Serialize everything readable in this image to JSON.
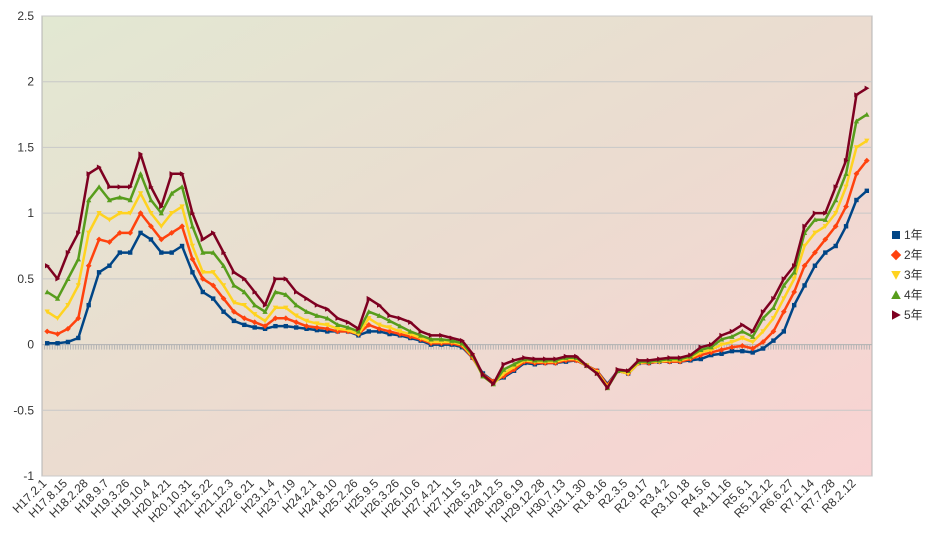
{
  "chart_data": {
    "type": "line",
    "categories": [
      "H17.2.1",
      null,
      "H17.8.15",
      null,
      "H18.2.28",
      null,
      "H18.9.7",
      null,
      "H19.3.26",
      null,
      "H19.10.4",
      null,
      "H20.4.21",
      null,
      "H20.10.31",
      null,
      "H21.5.22",
      null,
      "H21.12.3",
      null,
      "H22.6.21",
      null,
      "H23.1.4",
      null,
      "H23.7.19",
      null,
      "H24.2.1",
      null,
      "H24.8.10",
      null,
      "H25.2.26",
      null,
      "H25.9.5",
      null,
      "H26.3.26",
      null,
      "H26.10.6",
      null,
      "H27.4.21",
      null,
      "H27.11.5",
      null,
      "H28.5.24",
      null,
      "H28.12.5",
      null,
      "H29.6.19",
      null,
      "H29.12.28",
      null,
      "H30.7.13",
      null,
      "H31.1.30",
      null,
      "R1.8.16",
      null,
      "R2.3.5",
      null,
      "R2.9.17",
      null,
      "R3.4.2",
      null,
      "R3.10.18",
      null,
      "R4.5.6",
      null,
      "R4.11.16",
      null,
      "R5.6.1",
      null,
      "R5.12.12",
      null,
      "R6.6.27",
      null,
      "R7.1.14",
      null,
      "R7.7.28",
      null,
      "R8.2.12",
      null
    ],
    "series": [
      {
        "name": "1年",
        "color": "#004586",
        "values": [
          0.01,
          0.01,
          0.02,
          0.05,
          0.3,
          0.55,
          0.6,
          0.7,
          0.7,
          0.85,
          0.8,
          0.7,
          0.7,
          0.75,
          0.55,
          0.4,
          0.35,
          0.25,
          0.18,
          0.15,
          0.13,
          0.12,
          0.14,
          0.14,
          0.13,
          0.12,
          0.11,
          0.1,
          0.1,
          0.1,
          0.07,
          0.1,
          0.1,
          0.08,
          0.07,
          0.05,
          0.03,
          0.0,
          0.0,
          0.0,
          -0.02,
          -0.1,
          -0.22,
          -0.28,
          -0.25,
          -0.2,
          -0.14,
          -0.15,
          -0.14,
          -0.14,
          -0.13,
          -0.12,
          -0.16,
          -0.2,
          -0.3,
          -0.2,
          -0.22,
          -0.14,
          -0.14,
          -0.13,
          -0.13,
          -0.13,
          -0.12,
          -0.11,
          -0.08,
          -0.07,
          -0.05,
          -0.05,
          -0.06,
          -0.03,
          0.03,
          0.1,
          0.3,
          0.45,
          0.6,
          0.7,
          0.75,
          0.9,
          1.1,
          1.17
        ]
      },
      {
        "name": "2年",
        "color": "#ff420e",
        "values": [
          0.1,
          0.08,
          0.12,
          0.2,
          0.6,
          0.8,
          0.78,
          0.85,
          0.85,
          1.0,
          0.9,
          0.8,
          0.85,
          0.9,
          0.65,
          0.5,
          0.45,
          0.35,
          0.25,
          0.2,
          0.17,
          0.14,
          0.2,
          0.2,
          0.17,
          0.14,
          0.13,
          0.12,
          0.1,
          0.1,
          0.08,
          0.15,
          0.12,
          0.1,
          0.08,
          0.06,
          0.04,
          0.01,
          0.01,
          0.01,
          -0.01,
          -0.1,
          -0.23,
          -0.28,
          -0.24,
          -0.19,
          -0.13,
          -0.14,
          -0.14,
          -0.14,
          -0.12,
          -0.12,
          -0.16,
          -0.2,
          -0.31,
          -0.2,
          -0.22,
          -0.14,
          -0.14,
          -0.13,
          -0.13,
          -0.13,
          -0.11,
          -0.08,
          -0.06,
          -0.04,
          -0.02,
          -0.01,
          -0.03,
          0.02,
          0.1,
          0.25,
          0.4,
          0.6,
          0.7,
          0.8,
          0.9,
          1.05,
          1.3,
          1.4
        ]
      },
      {
        "name": "3年",
        "color": "#ffd320",
        "values": [
          0.25,
          0.2,
          0.3,
          0.45,
          0.85,
          1.0,
          0.95,
          1.0,
          1.0,
          1.15,
          1.0,
          0.9,
          1.0,
          1.05,
          0.75,
          0.55,
          0.55,
          0.45,
          0.32,
          0.3,
          0.23,
          0.18,
          0.28,
          0.28,
          0.22,
          0.18,
          0.16,
          0.15,
          0.12,
          0.11,
          0.08,
          0.2,
          0.15,
          0.13,
          0.1,
          0.08,
          0.05,
          0.02,
          0.02,
          0.02,
          0.0,
          -0.09,
          -0.24,
          -0.3,
          -0.22,
          -0.17,
          -0.12,
          -0.13,
          -0.13,
          -0.13,
          -0.11,
          -0.11,
          -0.16,
          -0.21,
          -0.32,
          -0.2,
          -0.22,
          -0.14,
          -0.13,
          -0.13,
          -0.12,
          -0.12,
          -0.1,
          -0.06,
          -0.04,
          0.0,
          0.02,
          0.05,
          0.02,
          0.1,
          0.2,
          0.35,
          0.5,
          0.75,
          0.85,
          0.9,
          1.0,
          1.2,
          1.5,
          1.55
        ]
      },
      {
        "name": "4年",
        "color": "#579d1c",
        "values": [
          0.4,
          0.35,
          0.5,
          0.65,
          1.1,
          1.2,
          1.1,
          1.12,
          1.1,
          1.3,
          1.1,
          1.0,
          1.15,
          1.2,
          0.9,
          0.7,
          0.7,
          0.6,
          0.45,
          0.4,
          0.3,
          0.25,
          0.4,
          0.38,
          0.3,
          0.25,
          0.22,
          0.2,
          0.15,
          0.13,
          0.1,
          0.25,
          0.22,
          0.18,
          0.14,
          0.1,
          0.07,
          0.04,
          0.04,
          0.03,
          0.01,
          -0.08,
          -0.24,
          -0.3,
          -0.19,
          -0.15,
          -0.11,
          -0.12,
          -0.12,
          -0.12,
          -0.1,
          -0.1,
          -0.16,
          -0.22,
          -0.33,
          -0.2,
          -0.2,
          -0.13,
          -0.13,
          -0.12,
          -0.11,
          -0.11,
          -0.09,
          -0.04,
          -0.02,
          0.04,
          0.06,
          0.1,
          0.06,
          0.2,
          0.28,
          0.45,
          0.55,
          0.85,
          0.95,
          0.95,
          1.1,
          1.3,
          1.7,
          1.75
        ]
      },
      {
        "name": "5年",
        "color": "#7e0021",
        "values": [
          0.6,
          0.5,
          0.7,
          0.85,
          1.3,
          1.35,
          1.2,
          1.2,
          1.2,
          1.45,
          1.2,
          1.05,
          1.3,
          1.3,
          1.0,
          0.8,
          0.85,
          0.7,
          0.55,
          0.5,
          0.4,
          0.3,
          0.5,
          0.5,
          0.4,
          0.35,
          0.3,
          0.27,
          0.2,
          0.17,
          0.12,
          0.35,
          0.3,
          0.22,
          0.2,
          0.17,
          0.1,
          0.07,
          0.07,
          0.05,
          0.03,
          -0.07,
          -0.23,
          -0.3,
          -0.15,
          -0.12,
          -0.1,
          -0.11,
          -0.11,
          -0.11,
          -0.09,
          -0.09,
          -0.16,
          -0.22,
          -0.33,
          -0.19,
          -0.2,
          -0.12,
          -0.12,
          -0.11,
          -0.1,
          -0.1,
          -0.08,
          -0.02,
          0.0,
          0.07,
          0.1,
          0.15,
          0.1,
          0.25,
          0.35,
          0.5,
          0.6,
          0.9,
          1.0,
          1.0,
          1.2,
          1.4,
          1.9,
          1.95
        ]
      }
    ],
    "ylim": [
      -1,
      2.5
    ],
    "yticks": [
      -1,
      -0.5,
      0,
      0.5,
      1,
      1.5,
      2,
      2.5
    ],
    "grid": true,
    "legend": "right"
  }
}
